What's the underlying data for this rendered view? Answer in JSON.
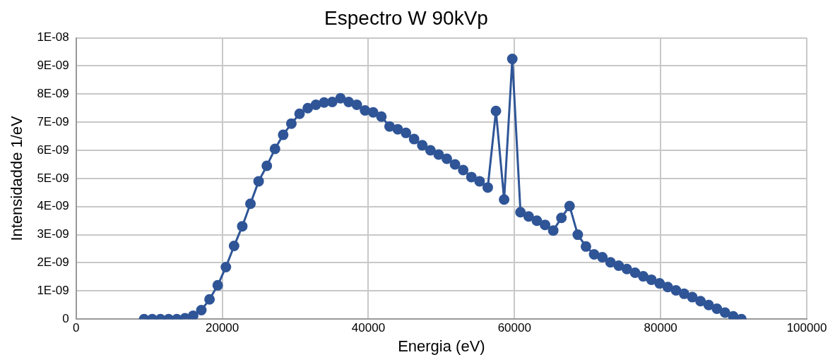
{
  "chart_data": {
    "type": "line",
    "title": "Espectro W 90kVp",
    "xlabel": "Energia (eV)",
    "ylabel": "Intensidadde 1/eV",
    "x": [
      9300,
      10420,
      11540,
      12660,
      13780,
      14900,
      16020,
      17140,
      18260,
      19380,
      20500,
      21620,
      22740,
      23860,
      24980,
      26100,
      27220,
      28340,
      29460,
      30580,
      31700,
      32820,
      33940,
      35060,
      36180,
      37300,
      38420,
      39540,
      40660,
      41780,
      42900,
      44020,
      45140,
      46260,
      47380,
      48500,
      49620,
      50740,
      51860,
      52980,
      54100,
      55220,
      56340,
      57460,
      58580,
      59700,
      60820,
      61940,
      63060,
      64180,
      65300,
      66420,
      67540,
      68660,
      69780,
      70900,
      72020,
      73140,
      74260,
      75380,
      76500,
      77620,
      78740,
      79860,
      80980,
      82100,
      83220,
      84340,
      85460,
      86580,
      87700,
      88820,
      89940,
      91060
    ],
    "series": [
      {
        "color": "#2f5597",
        "values": [
          0,
          0,
          0,
          0,
          0,
          3e-11,
          1.2e-10,
          3.2e-10,
          7e-10,
          1.2e-09,
          1.85e-09,
          2.6e-09,
          3.3e-09,
          4.1e-09,
          4.9e-09,
          5.45e-09,
          6.05e-09,
          6.55e-09,
          6.95e-09,
          7.3e-09,
          7.5e-09,
          7.62e-09,
          7.7e-09,
          7.72e-09,
          7.85e-09,
          7.72e-09,
          7.62e-09,
          7.42e-09,
          7.35e-09,
          7.2e-09,
          6.85e-09,
          6.75e-09,
          6.62e-09,
          6.4e-09,
          6.18e-09,
          6e-09,
          5.85e-09,
          5.7e-09,
          5.5e-09,
          5.3e-09,
          5.05e-09,
          4.9e-09,
          4.68e-09,
          7.4e-09,
          4.25e-09,
          9.25e-09,
          3.8e-09,
          3.65e-09,
          3.5e-09,
          3.35e-09,
          3.15e-09,
          3.6e-09,
          4.02e-09,
          3e-09,
          2.58e-09,
          2.3e-09,
          2.2e-09,
          2.02e-09,
          1.9e-09,
          1.78e-09,
          1.65e-09,
          1.52e-09,
          1.4e-09,
          1.27e-09,
          1.14e-09,
          1.02e-09,
          9e-10,
          7.8e-10,
          6.4e-10,
          5e-10,
          3.7e-10,
          2.3e-10,
          1e-10,
          0
        ]
      }
    ],
    "xlim": [
      0,
      100000
    ],
    "xticks": [
      0,
      20000,
      40000,
      60000,
      80000,
      100000
    ],
    "ylim": [
      0,
      1e-08
    ],
    "yticks": [
      {
        "value": 0,
        "label": "0"
      },
      {
        "value": 1e-09,
        "label": "1E-09"
      },
      {
        "value": 2e-09,
        "label": "2E-09"
      },
      {
        "value": 3e-09,
        "label": "3E-09"
      },
      {
        "value": 4e-09,
        "label": "4E-09"
      },
      {
        "value": 5e-09,
        "label": "5E-09"
      },
      {
        "value": 6e-09,
        "label": "6E-09"
      },
      {
        "value": 7e-09,
        "label": "7E-09"
      },
      {
        "value": 8e-09,
        "label": "8E-09"
      },
      {
        "value": 9e-09,
        "label": "9E-09"
      },
      {
        "value": 1e-08,
        "label": "1E-08"
      }
    ],
    "grid": true,
    "legend": false,
    "marker": "circle",
    "line_style": "solid"
  }
}
